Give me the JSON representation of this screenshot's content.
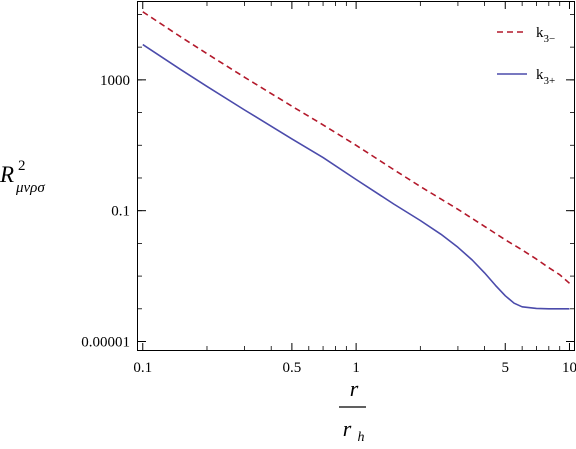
{
  "chart_data": {
    "type": "line",
    "title": "",
    "xscale": "log",
    "yscale": "log",
    "xlim": [
      0.095,
      10.5
    ],
    "ylim": [
      5.5e-06,
      240000
    ],
    "xticks": [
      {
        "v": 0.1,
        "label": "0.1"
      },
      {
        "v": 0.5,
        "label": "0.5"
      },
      {
        "v": 1,
        "label": "1"
      },
      {
        "v": 5,
        "label": "5"
      },
      {
        "v": 10,
        "label": "10"
      }
    ],
    "yticks": [
      {
        "v": 1e-05,
        "label": "0.00001"
      },
      {
        "v": 0.1,
        "label": "0.1"
      },
      {
        "v": 1000,
        "label": "1000"
      }
    ],
    "xlabel": {
      "numerator": "r",
      "denominator_base": "r",
      "denominator_sub": "h"
    },
    "ylabel": {
      "base": "R",
      "sup": "2",
      "sub": "μνρσ"
    },
    "legend": {
      "position": "top-right"
    },
    "series": [
      {
        "name_base": "k",
        "name_sub": "3−",
        "color": "#b3192b",
        "dash": "dashed",
        "x": [
          0.1,
          0.15,
          0.2,
          0.3,
          0.5,
          0.7,
          1,
          1.5,
          2,
          3,
          4,
          5,
          6,
          7,
          8,
          9,
          10
        ],
        "y": [
          120000,
          21000,
          6300,
          1200,
          156,
          42,
          10,
          1.8,
          0.55,
          0.11,
          0.033,
          0.0129,
          0.0063,
          0.0033,
          0.0018,
          0.0011,
          0.0006
        ]
      },
      {
        "name_base": "k",
        "name_sub": "3+",
        "color": "#4b4bab",
        "dash": "solid",
        "x": [
          0.1,
          0.15,
          0.2,
          0.3,
          0.5,
          0.7,
          1,
          1.5,
          2,
          2.5,
          3,
          3.5,
          4,
          4.5,
          5,
          5.5,
          6,
          7,
          8,
          10
        ],
        "y": [
          12000,
          2100,
          630,
          120,
          15.6,
          4.2,
          0.9,
          0.16,
          0.05,
          0.019,
          0.0076,
          0.0031,
          0.00125,
          0.00052,
          0.00025,
          0.000148,
          0.000115,
          0.000103,
          0.0001,
          0.0001
        ]
      }
    ]
  }
}
